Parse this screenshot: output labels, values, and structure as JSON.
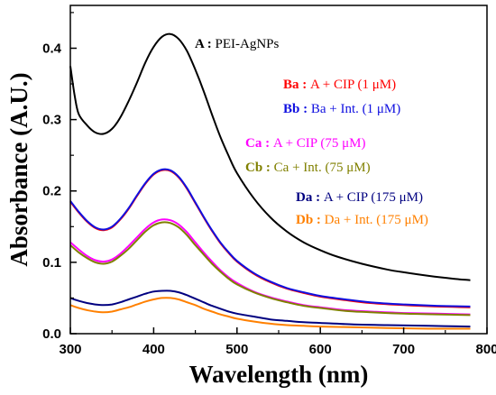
{
  "chart_data": {
    "type": "line",
    "xlabel": "Wavelength (nm)",
    "ylabel": "Absorbance (A.U.)",
    "xlim": [
      300,
      800
    ],
    "ylim": [
      0.0,
      0.46
    ],
    "x_ticks": [
      "300",
      "400",
      "500",
      "600",
      "700",
      "800"
    ],
    "y_ticks": [
      "0.0",
      "0.1",
      "0.2",
      "0.3",
      "0.4"
    ],
    "grid": false,
    "legend_position": "right",
    "series": [
      {
        "name": "A",
        "legend_key": "A :",
        "legend_text": "PEI-AgNPs",
        "color": "#000000",
        "points": [
          [
            300,
            0.375
          ],
          [
            305,
            0.335
          ],
          [
            310,
            0.308
          ],
          [
            320,
            0.292
          ],
          [
            330,
            0.282
          ],
          [
            340,
            0.28
          ],
          [
            350,
            0.287
          ],
          [
            360,
            0.303
          ],
          [
            370,
            0.326
          ],
          [
            380,
            0.352
          ],
          [
            390,
            0.38
          ],
          [
            400,
            0.402
          ],
          [
            410,
            0.416
          ],
          [
            420,
            0.42
          ],
          [
            430,
            0.413
          ],
          [
            440,
            0.396
          ],
          [
            450,
            0.37
          ],
          [
            460,
            0.34
          ],
          [
            470,
            0.307
          ],
          [
            480,
            0.276
          ],
          [
            490,
            0.249
          ],
          [
            500,
            0.225
          ],
          [
            520,
            0.19
          ],
          [
            540,
            0.163
          ],
          [
            560,
            0.143
          ],
          [
            580,
            0.128
          ],
          [
            600,
            0.117
          ],
          [
            620,
            0.108
          ],
          [
            650,
            0.098
          ],
          [
            680,
            0.09
          ],
          [
            700,
            0.086
          ],
          [
            730,
            0.081
          ],
          [
            760,
            0.077
          ],
          [
            780,
            0.075
          ]
        ]
      },
      {
        "name": "Ba",
        "legend_key": "Ba :",
        "legend_text": "A + CIP (1 μM)",
        "color": "#ff0000",
        "points": [
          [
            300,
            0.185
          ],
          [
            310,
            0.17
          ],
          [
            320,
            0.157
          ],
          [
            330,
            0.148
          ],
          [
            340,
            0.145
          ],
          [
            350,
            0.149
          ],
          [
            360,
            0.16
          ],
          [
            370,
            0.175
          ],
          [
            380,
            0.193
          ],
          [
            390,
            0.21
          ],
          [
            400,
            0.223
          ],
          [
            410,
            0.229
          ],
          [
            420,
            0.228
          ],
          [
            430,
            0.219
          ],
          [
            440,
            0.203
          ],
          [
            450,
            0.183
          ],
          [
            460,
            0.163
          ],
          [
            470,
            0.144
          ],
          [
            480,
            0.127
          ],
          [
            490,
            0.113
          ],
          [
            500,
            0.101
          ],
          [
            520,
            0.084
          ],
          [
            540,
            0.072
          ],
          [
            560,
            0.063
          ],
          [
            580,
            0.057
          ],
          [
            600,
            0.052
          ],
          [
            630,
            0.047
          ],
          [
            660,
            0.043
          ],
          [
            700,
            0.04
          ],
          [
            740,
            0.038
          ],
          [
            780,
            0.037
          ]
        ]
      },
      {
        "name": "Bb",
        "legend_key": "Bb :",
        "legend_text": "Ba + Int. (1 μM)",
        "color": "#1010e0",
        "points": [
          [
            300,
            0.186
          ],
          [
            310,
            0.171
          ],
          [
            320,
            0.158
          ],
          [
            330,
            0.149
          ],
          [
            340,
            0.146
          ],
          [
            350,
            0.15
          ],
          [
            360,
            0.161
          ],
          [
            370,
            0.176
          ],
          [
            380,
            0.194
          ],
          [
            390,
            0.211
          ],
          [
            400,
            0.224
          ],
          [
            410,
            0.23
          ],
          [
            420,
            0.229
          ],
          [
            430,
            0.22
          ],
          [
            440,
            0.204
          ],
          [
            450,
            0.184
          ],
          [
            460,
            0.164
          ],
          [
            470,
            0.145
          ],
          [
            480,
            0.128
          ],
          [
            490,
            0.114
          ],
          [
            500,
            0.102
          ],
          [
            520,
            0.085
          ],
          [
            540,
            0.073
          ],
          [
            560,
            0.064
          ],
          [
            580,
            0.058
          ],
          [
            600,
            0.053
          ],
          [
            630,
            0.048
          ],
          [
            660,
            0.044
          ],
          [
            700,
            0.041
          ],
          [
            740,
            0.039
          ],
          [
            780,
            0.038
          ]
        ]
      },
      {
        "name": "Ca",
        "legend_key": "Ca :",
        "legend_text": "A + CIP (75 μM)",
        "color": "#ff00ff",
        "points": [
          [
            300,
            0.128
          ],
          [
            310,
            0.118
          ],
          [
            320,
            0.109
          ],
          [
            330,
            0.103
          ],
          [
            340,
            0.101
          ],
          [
            350,
            0.104
          ],
          [
            360,
            0.112
          ],
          [
            370,
            0.123
          ],
          [
            380,
            0.135
          ],
          [
            390,
            0.147
          ],
          [
            400,
            0.156
          ],
          [
            410,
            0.16
          ],
          [
            420,
            0.159
          ],
          [
            430,
            0.153
          ],
          [
            440,
            0.142
          ],
          [
            450,
            0.128
          ],
          [
            460,
            0.114
          ],
          [
            470,
            0.101
          ],
          [
            480,
            0.089
          ],
          [
            490,
            0.079
          ],
          [
            500,
            0.071
          ],
          [
            520,
            0.059
          ],
          [
            540,
            0.051
          ],
          [
            560,
            0.045
          ],
          [
            580,
            0.04
          ],
          [
            600,
            0.037
          ],
          [
            630,
            0.033
          ],
          [
            660,
            0.031
          ],
          [
            700,
            0.029
          ],
          [
            740,
            0.028
          ],
          [
            780,
            0.027
          ]
        ]
      },
      {
        "name": "Cb",
        "legend_key": "Cb :",
        "legend_text": "Ca + Int. (75 μM)",
        "color": "#808000",
        "points": [
          [
            300,
            0.124
          ],
          [
            310,
            0.114
          ],
          [
            320,
            0.106
          ],
          [
            330,
            0.1
          ],
          [
            340,
            0.098
          ],
          [
            350,
            0.101
          ],
          [
            360,
            0.109
          ],
          [
            370,
            0.119
          ],
          [
            380,
            0.131
          ],
          [
            390,
            0.143
          ],
          [
            400,
            0.152
          ],
          [
            410,
            0.156
          ],
          [
            420,
            0.155
          ],
          [
            430,
            0.149
          ],
          [
            440,
            0.138
          ],
          [
            450,
            0.124
          ],
          [
            460,
            0.111
          ],
          [
            470,
            0.098
          ],
          [
            480,
            0.087
          ],
          [
            490,
            0.077
          ],
          [
            500,
            0.069
          ],
          [
            520,
            0.058
          ],
          [
            540,
            0.05
          ],
          [
            560,
            0.044
          ],
          [
            580,
            0.039
          ],
          [
            600,
            0.036
          ],
          [
            630,
            0.032
          ],
          [
            660,
            0.03
          ],
          [
            700,
            0.028
          ],
          [
            740,
            0.027
          ],
          [
            780,
            0.026
          ]
        ]
      },
      {
        "name": "Da",
        "legend_key": "Da :",
        "legend_text": "A + CIP (175 μM)",
        "color": "#000080",
        "points": [
          [
            300,
            0.05
          ],
          [
            310,
            0.046
          ],
          [
            320,
            0.043
          ],
          [
            330,
            0.041
          ],
          [
            340,
            0.04
          ],
          [
            350,
            0.041
          ],
          [
            360,
            0.044
          ],
          [
            370,
            0.048
          ],
          [
            380,
            0.052
          ],
          [
            390,
            0.056
          ],
          [
            400,
            0.059
          ],
          [
            410,
            0.06
          ],
          [
            420,
            0.06
          ],
          [
            430,
            0.058
          ],
          [
            440,
            0.054
          ],
          [
            450,
            0.049
          ],
          [
            460,
            0.044
          ],
          [
            470,
            0.039
          ],
          [
            480,
            0.035
          ],
          [
            490,
            0.031
          ],
          [
            500,
            0.028
          ],
          [
            520,
            0.024
          ],
          [
            540,
            0.02
          ],
          [
            560,
            0.018
          ],
          [
            580,
            0.016
          ],
          [
            600,
            0.015
          ],
          [
            640,
            0.013
          ],
          [
            680,
            0.012
          ],
          [
            730,
            0.011
          ],
          [
            780,
            0.01
          ]
        ]
      },
      {
        "name": "Db",
        "legend_key": "Db :",
        "legend_text": "Da + Int. (175 μM)",
        "color": "#ff8000",
        "points": [
          [
            300,
            0.04
          ],
          [
            310,
            0.036
          ],
          [
            320,
            0.033
          ],
          [
            330,
            0.031
          ],
          [
            340,
            0.03
          ],
          [
            350,
            0.031
          ],
          [
            360,
            0.034
          ],
          [
            370,
            0.037
          ],
          [
            380,
            0.041
          ],
          [
            390,
            0.045
          ],
          [
            400,
            0.048
          ],
          [
            410,
            0.05
          ],
          [
            420,
            0.05
          ],
          [
            430,
            0.048
          ],
          [
            440,
            0.044
          ],
          [
            450,
            0.04
          ],
          [
            460,
            0.035
          ],
          [
            470,
            0.031
          ],
          [
            480,
            0.027
          ],
          [
            490,
            0.024
          ],
          [
            500,
            0.021
          ],
          [
            520,
            0.017
          ],
          [
            540,
            0.014
          ],
          [
            560,
            0.012
          ],
          [
            580,
            0.011
          ],
          [
            600,
            0.01
          ],
          [
            640,
            0.009
          ],
          [
            680,
            0.008
          ],
          [
            730,
            0.007
          ],
          [
            780,
            0.007
          ]
        ]
      }
    ]
  }
}
